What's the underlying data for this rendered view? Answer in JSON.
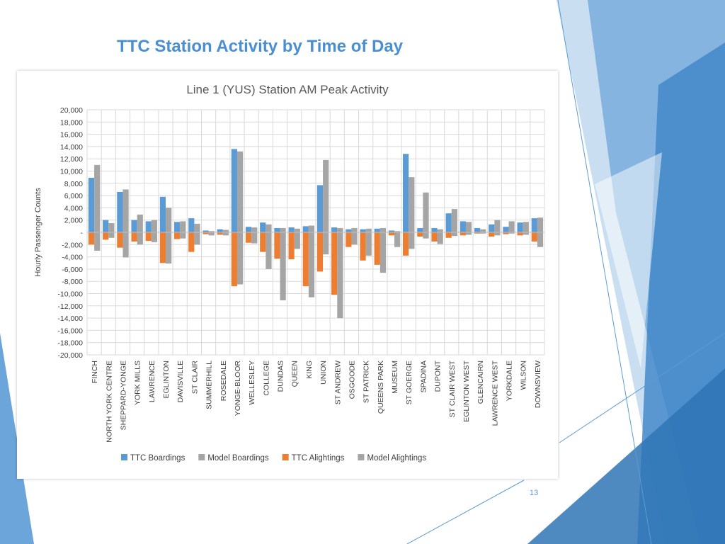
{
  "slide": {
    "title": "TTC Station Activity by Time of Day",
    "number": "13"
  },
  "colors": {
    "ttc_boardings": "#5b9bd5",
    "model_boardings": "#a5a5a5",
    "ttc_alightings": "#ed7d31",
    "model_alightings": "#a5a5a5",
    "title_blue": "#4a8fd0",
    "deco_blue": "#5b9bd5"
  },
  "chart_data": {
    "type": "bar",
    "title": "Line 1 (YUS) Station AM Peak Activity",
    "xlabel": "",
    "ylabel": "Hourly Passenger Counts",
    "ylim": [
      -20000,
      20000
    ],
    "yticks": [
      20000,
      18000,
      16000,
      14000,
      12000,
      10000,
      8000,
      6000,
      4000,
      2000,
      0,
      -2000,
      -4000,
      -6000,
      -8000,
      -10000,
      -12000,
      -14000,
      -16000,
      -18000,
      -20000
    ],
    "ytick_labels": [
      "20,000",
      "18,000",
      "16,000",
      "14,000",
      "12,000",
      "10,000",
      "8,000",
      "6,000",
      "4,000",
      "2,000",
      "-",
      "-2,000",
      "-4,000",
      "-6,000",
      "-8,000",
      "-10,000",
      "-12,000",
      "-14,000",
      "-16,000",
      "-18,000",
      "-20,000"
    ],
    "grid": true,
    "legend_position": "bottom",
    "categories": [
      "FINCH",
      "NORTH YORK CENTRE",
      "SHEPPARD-YONGE",
      "YORK MILLS",
      "LAWRENCE",
      "EGLINTON",
      "DAVISVILLE",
      "ST CLAIR",
      "SUMMERHILL",
      "ROSEDALE",
      "YONGE-BLOOR",
      "WELLESLEY",
      "COLLEGE",
      "DUNDAS",
      "QUEEN",
      "KING",
      "UNION",
      "ST ANDREW",
      "OSGOODE",
      "ST PATRICK",
      "QUEENS PARK",
      "MUSEUM",
      "ST GOERGE",
      "SPADINA",
      "DUPONT",
      "ST CLAIR WEST",
      "EGLINTON WEST",
      "GLENCAIRN",
      "LAWRENCE WEST",
      "YORKDALE",
      "WILSON",
      "DOWNSVIEW"
    ],
    "series": [
      {
        "name": "TTC Boardings",
        "color_key": "ttc_boardings",
        "values": [
          8900,
          2000,
          6600,
          2000,
          1800,
          5800,
          1700,
          2300,
          300,
          500,
          13600,
          900,
          1600,
          700,
          800,
          1000,
          7700,
          800,
          500,
          500,
          600,
          300,
          12800,
          700,
          700,
          3100,
          1800,
          700,
          1300,
          900,
          1600,
          2300
        ]
      },
      {
        "name": "Model Boardings",
        "color_key": "model_boardings",
        "values": [
          11000,
          1500,
          7000,
          2900,
          2000,
          4000,
          1800,
          1400,
          200,
          400,
          13200,
          800,
          1300,
          700,
          600,
          1100,
          11800,
          700,
          700,
          600,
          700,
          200,
          9000,
          6500,
          500,
          3800,
          1700,
          500,
          2000,
          1800,
          1700,
          2400
        ]
      },
      {
        "name": "TTC Alightings",
        "color_key": "ttc_alightings",
        "values": [
          -2000,
          -1200,
          -2500,
          -1500,
          -1400,
          -5000,
          -1100,
          -3200,
          -300,
          -400,
          -8800,
          -1700,
          -3200,
          -4300,
          -4400,
          -8800,
          -6400,
          -10200,
          -2400,
          -4600,
          -5300,
          -500,
          -3800,
          -700,
          -1500,
          -900,
          -500,
          -200,
          -700,
          -300,
          -500,
          -1500
        ]
      },
      {
        "name": "Model Alightings",
        "color_key": "model_alightings",
        "values": [
          -3000,
          -900,
          -4100,
          -2000,
          -1600,
          -5100,
          -1000,
          -2000,
          -500,
          -500,
          -8500,
          -1800,
          -6000,
          -11100,
          -2700,
          -10600,
          -3600,
          -14000,
          -2000,
          -3800,
          -6600,
          -2400,
          -2700,
          -1000,
          -1900,
          -600,
          -400,
          -200,
          -500,
          -200,
          -400,
          -2400
        ]
      }
    ]
  }
}
